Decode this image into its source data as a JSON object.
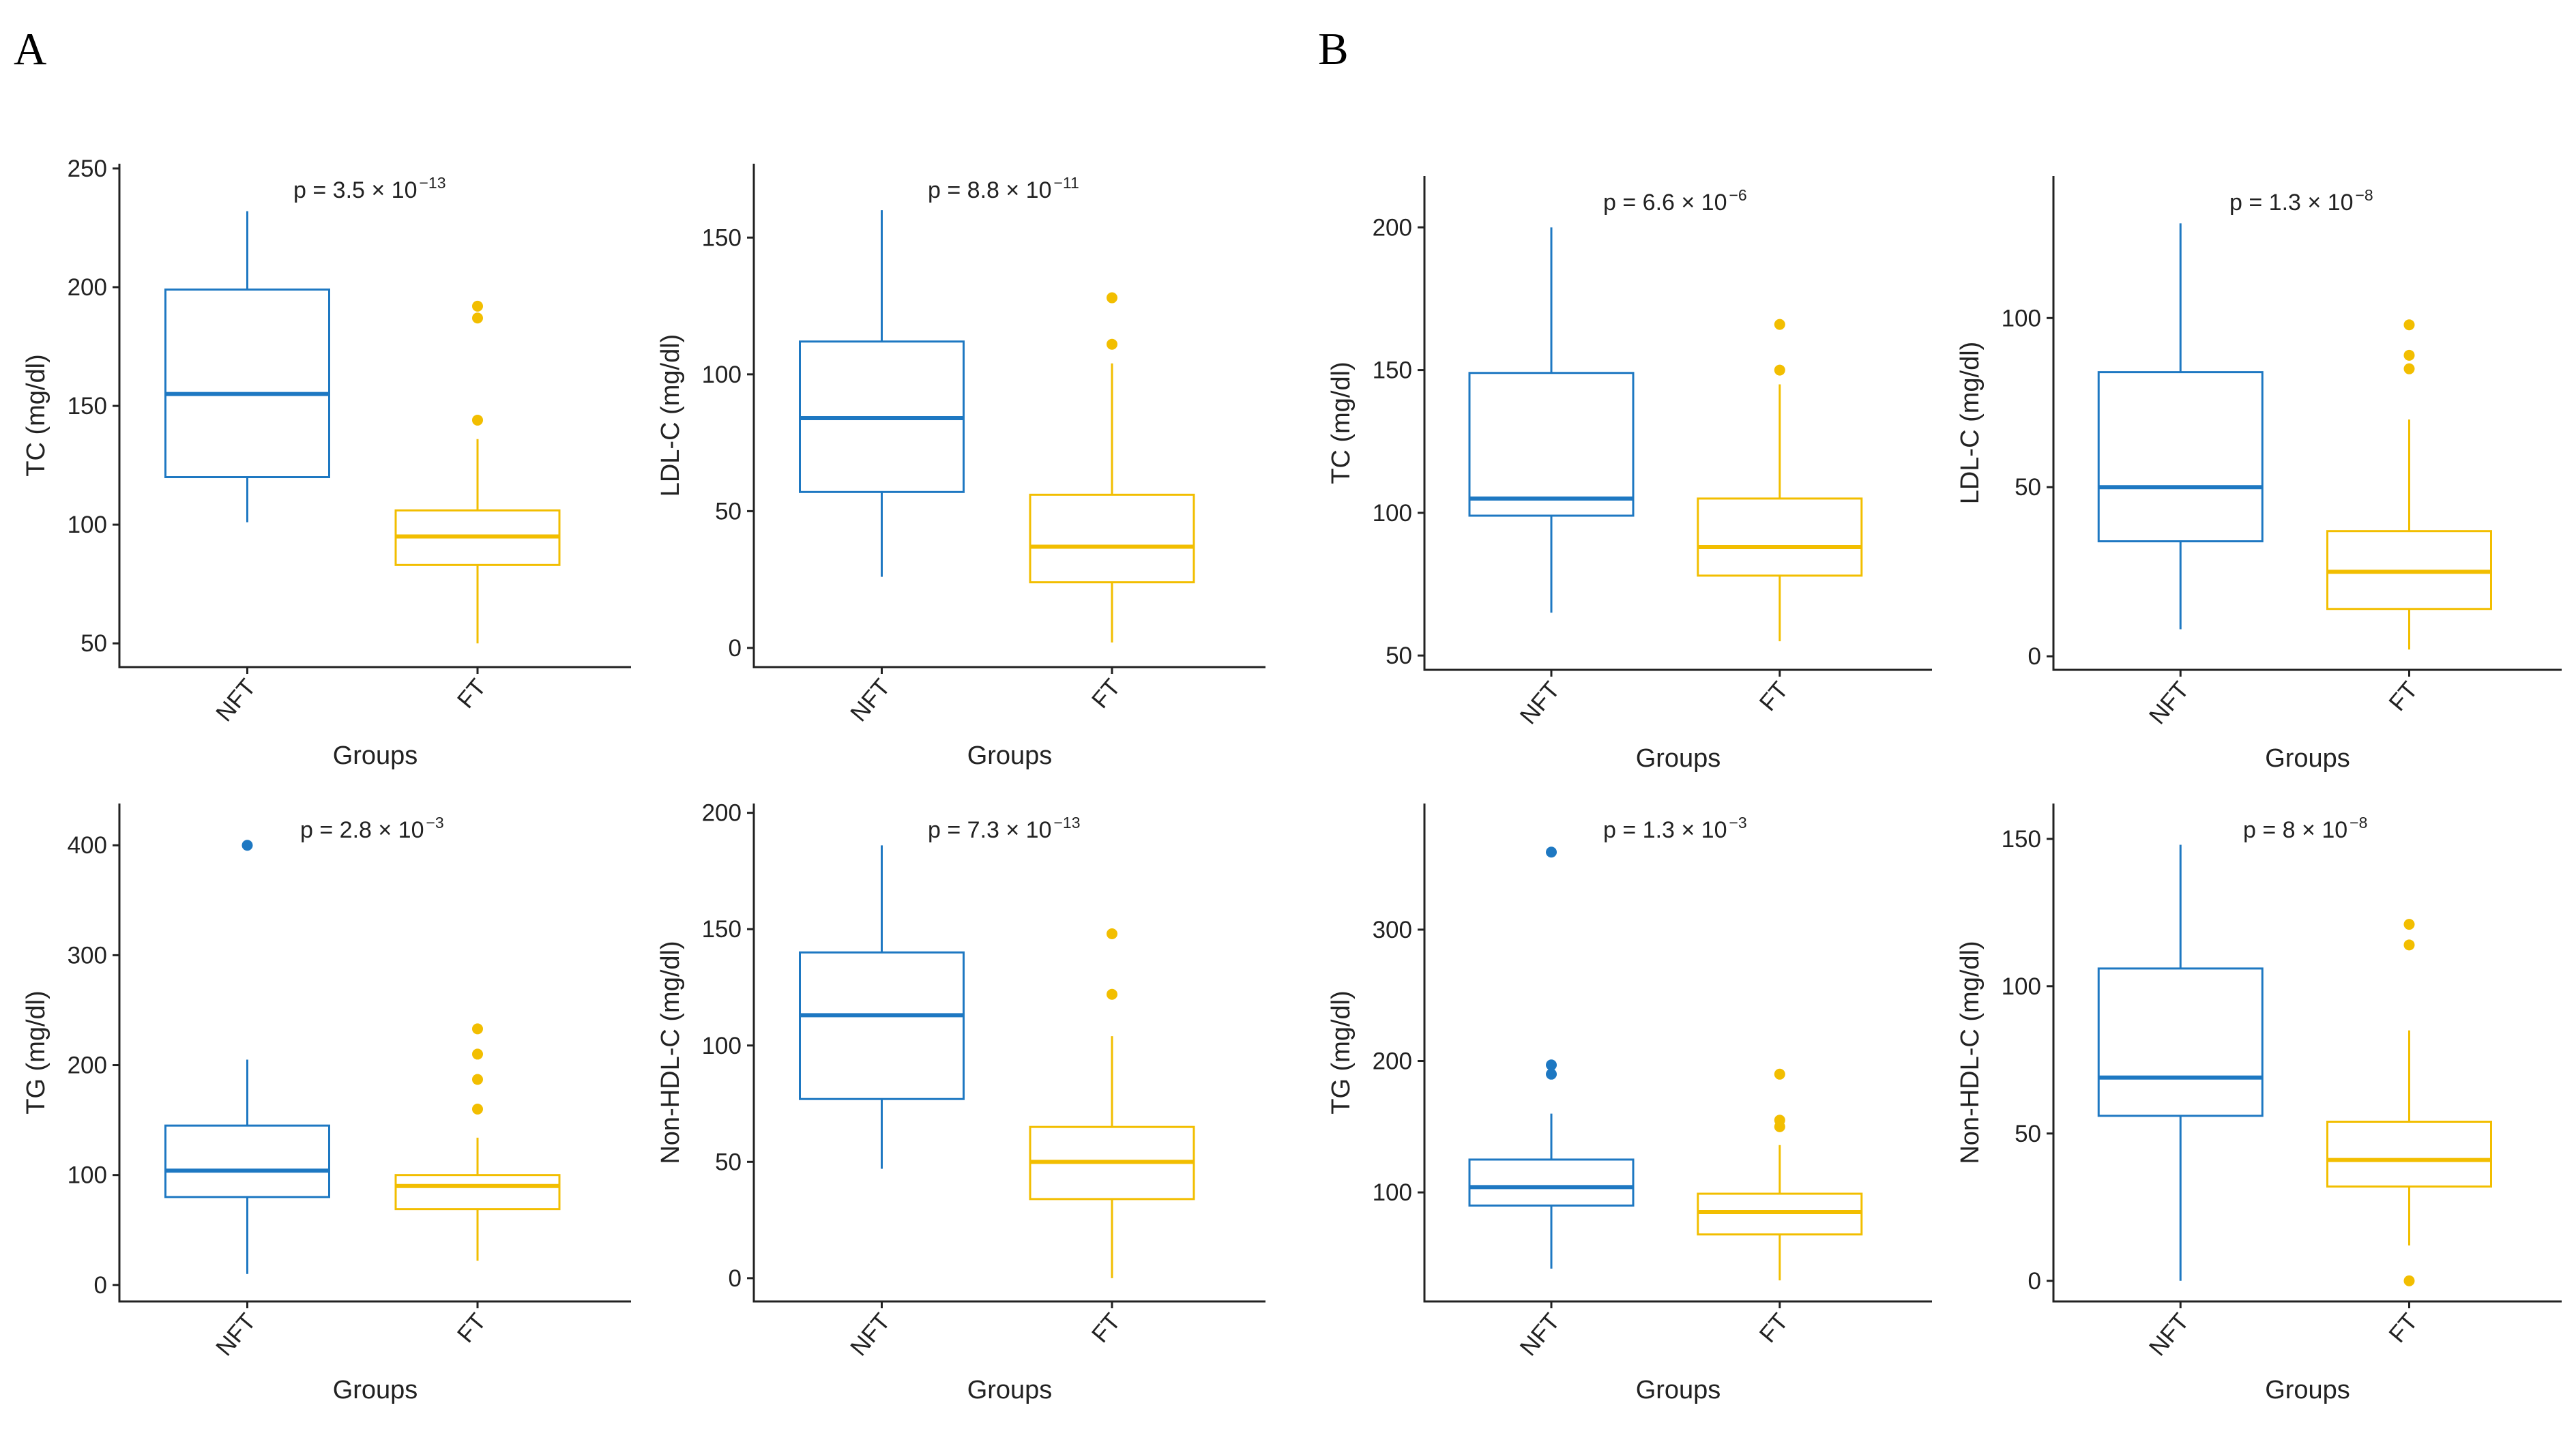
{
  "panels": [
    {
      "label": "A"
    },
    {
      "label": "B"
    }
  ],
  "colors": {
    "NFT": "#1E78C2",
    "FT": "#F2BE00",
    "axis": "#222222"
  },
  "chart_data": [
    {
      "type": "box",
      "panel": "A",
      "xlabel": "Groups",
      "ylabel": "TC (mg/dl)",
      "categories": [
        "NFT",
        "FT"
      ],
      "ylim": [
        40,
        252
      ],
      "yticks": [
        50,
        100,
        150,
        200,
        250
      ],
      "p_value": {
        "prefix": "p = 3.5 × 10",
        "exp": "−13"
      },
      "boxes": [
        {
          "group": "NFT",
          "whisker_low": 101,
          "q1": 120,
          "median": 155,
          "q3": 199,
          "whisker_high": 232,
          "outliers": []
        },
        {
          "group": "FT",
          "whisker_low": 50,
          "q1": 83,
          "median": 95,
          "q3": 106,
          "whisker_high": 136,
          "outliers": [
            144,
            187,
            192
          ]
        }
      ]
    },
    {
      "type": "box",
      "panel": "A",
      "xlabel": "Groups",
      "ylabel": "LDL-C (mg/dl)",
      "categories": [
        "NFT",
        "FT"
      ],
      "ylim": [
        -7,
        177
      ],
      "yticks": [
        0,
        50,
        100,
        150
      ],
      "p_value": {
        "prefix": "p = 8.8 × 10",
        "exp": "−11"
      },
      "boxes": [
        {
          "group": "NFT",
          "whisker_low": 26,
          "q1": 57,
          "median": 84,
          "q3": 112,
          "whisker_high": 160,
          "outliers": []
        },
        {
          "group": "FT",
          "whisker_low": 2,
          "q1": 24,
          "median": 37,
          "q3": 56,
          "whisker_high": 104,
          "outliers": [
            111,
            128
          ]
        }
      ]
    },
    {
      "type": "box",
      "panel": "B",
      "xlabel": "Groups",
      "ylabel": "TC (mg/dl)",
      "categories": [
        "NFT",
        "FT"
      ],
      "ylim": [
        45,
        218
      ],
      "yticks": [
        50,
        100,
        150,
        200
      ],
      "p_value": {
        "prefix": "p = 6.6 × 10",
        "exp": "−6"
      },
      "boxes": [
        {
          "group": "NFT",
          "whisker_low": 65,
          "q1": 99,
          "median": 105,
          "q3": 149,
          "whisker_high": 200,
          "outliers": []
        },
        {
          "group": "FT",
          "whisker_low": 55,
          "q1": 78,
          "median": 88,
          "q3": 105,
          "whisker_high": 145,
          "outliers": [
            150,
            166
          ]
        }
      ]
    },
    {
      "type": "box",
      "panel": "B",
      "xlabel": "Groups",
      "ylabel": "LDL-C (mg/dl)",
      "categories": [
        "NFT",
        "FT"
      ],
      "ylim": [
        -4,
        142
      ],
      "yticks": [
        0,
        50,
        100
      ],
      "p_value": {
        "prefix": "p = 1.3 × 10",
        "exp": "−8"
      },
      "boxes": [
        {
          "group": "NFT",
          "whisker_low": 8,
          "q1": 34,
          "median": 50,
          "q3": 84,
          "whisker_high": 128,
          "outliers": []
        },
        {
          "group": "FT",
          "whisker_low": 2,
          "q1": 14,
          "median": 25,
          "q3": 37,
          "whisker_high": 70,
          "outliers": [
            85,
            89,
            98
          ]
        }
      ]
    },
    {
      "type": "box",
      "panel": "A",
      "xlabel": "Groups",
      "ylabel": "TG (mg/dl)",
      "categories": [
        "NFT",
        "FT"
      ],
      "ylim": [
        -15,
        438
      ],
      "yticks": [
        0,
        100,
        200,
        300,
        400
      ],
      "p_value": {
        "prefix": "p = 2.8 × 10",
        "exp": "−3"
      },
      "boxes": [
        {
          "group": "NFT",
          "whisker_low": 10,
          "q1": 80,
          "median": 104,
          "q3": 145,
          "whisker_high": 205,
          "outliers": [
            400
          ]
        },
        {
          "group": "FT",
          "whisker_low": 22,
          "q1": 69,
          "median": 90,
          "q3": 100,
          "whisker_high": 134,
          "outliers": [
            160,
            187,
            210,
            233
          ]
        }
      ]
    },
    {
      "type": "box",
      "panel": "A",
      "xlabel": "Groups",
      "ylabel": "Non-HDL-C (mg/dl)",
      "categories": [
        "NFT",
        "FT"
      ],
      "ylim": [
        -10,
        204
      ],
      "yticks": [
        0,
        50,
        100,
        150,
        200
      ],
      "p_value": {
        "prefix": "p = 7.3 × 10",
        "exp": "−13"
      },
      "boxes": [
        {
          "group": "NFT",
          "whisker_low": 47,
          "q1": 77,
          "median": 113,
          "q3": 140,
          "whisker_high": 186,
          "outliers": []
        },
        {
          "group": "FT",
          "whisker_low": 0,
          "q1": 34,
          "median": 50,
          "q3": 65,
          "whisker_high": 104,
          "outliers": [
            122,
            148
          ]
        }
      ]
    },
    {
      "type": "box",
      "panel": "B",
      "xlabel": "Groups",
      "ylabel": "TG (mg/dl)",
      "categories": [
        "NFT",
        "FT"
      ],
      "ylim": [
        17,
        396
      ],
      "yticks": [
        100,
        200,
        300
      ],
      "p_value": {
        "prefix": "p = 1.3 × 10",
        "exp": "−3"
      },
      "boxes": [
        {
          "group": "NFT",
          "whisker_low": 42,
          "q1": 90,
          "median": 104,
          "q3": 125,
          "whisker_high": 160,
          "outliers": [
            190,
            197,
            359
          ]
        },
        {
          "group": "FT",
          "whisker_low": 33,
          "q1": 68,
          "median": 85,
          "q3": 99,
          "whisker_high": 136,
          "outliers": [
            150,
            155,
            190
          ]
        }
      ]
    },
    {
      "type": "box",
      "panel": "B",
      "xlabel": "Groups",
      "ylabel": "Non-HDL-C (mg/dl)",
      "categories": [
        "NFT",
        "FT"
      ],
      "ylim": [
        -7,
        162
      ],
      "yticks": [
        0,
        50,
        100,
        150
      ],
      "p_value": {
        "prefix": "p = 8 × 10",
        "exp": "−8"
      },
      "boxes": [
        {
          "group": "NFT",
          "whisker_low": 0,
          "q1": 56,
          "median": 69,
          "q3": 106,
          "whisker_high": 148,
          "outliers": []
        },
        {
          "group": "FT",
          "whisker_low": 12,
          "q1": 32,
          "median": 41,
          "q3": 54,
          "whisker_high": 85,
          "outliers": [
            0,
            114,
            121
          ]
        }
      ]
    }
  ]
}
